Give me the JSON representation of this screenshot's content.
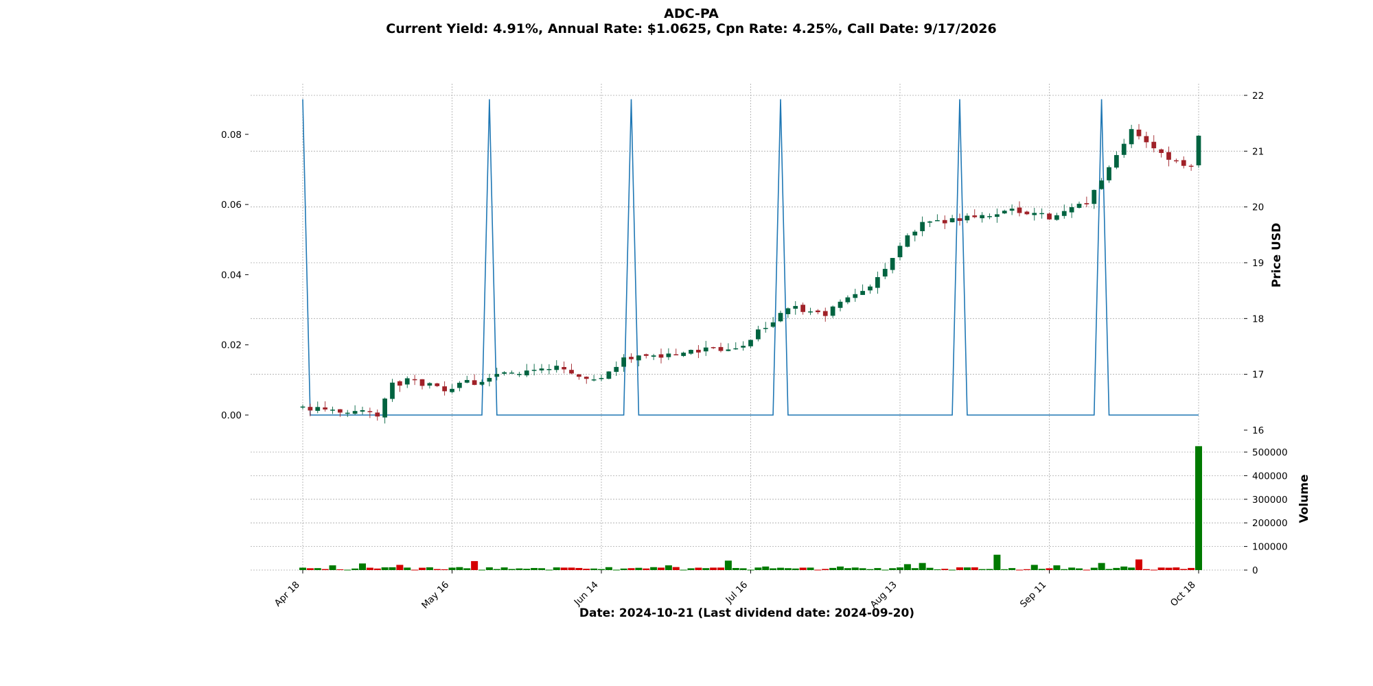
{
  "chart_data": {
    "type": "candlestick",
    "title": "ADC-PA",
    "subtitle": "Current Yield: 4.91%, Annual Rate: $1.0625, Cpn Rate: 4.25%, Call Date: 9/17/2026",
    "xlabel": "Date: 2024-10-21   (Last dividend date: 2024-09-20)",
    "ylabel_price": "Price USD",
    "ylabel_volume": "Volume",
    "x_tick_labels": [
      "Apr 18",
      "May 16",
      "Jun 14",
      "Jul 16",
      "Aug 13",
      "Sep 11",
      "Oct 18"
    ],
    "x_tick_index": [
      0,
      20,
      40,
      60,
      80,
      100,
      120
    ],
    "n_points": 121,
    "price_ylim": [
      16,
      22
    ],
    "price_ticks": [
      16,
      17,
      18,
      19,
      20,
      21,
      22
    ],
    "left_ylim": [
      0,
      0.09
    ],
    "left_ticks": [
      "0.00",
      "0.02",
      "0.04",
      "0.06",
      "0.08"
    ],
    "volume_ylim": [
      0,
      550000
    ],
    "volume_ticks": [
      "0",
      "100000",
      "200000",
      "300000",
      "400000",
      "500000"
    ],
    "grid": true,
    "colors": {
      "up": "#006340",
      "down": "#a02128",
      "vol_up": "#007a00",
      "vol_down": "#d40000",
      "line": "#1f77b4"
    },
    "price_anchors": [
      [
        0,
        16.4
      ],
      [
        10,
        16.3
      ],
      [
        12,
        16.8
      ],
      [
        14,
        16.9
      ],
      [
        19,
        16.75
      ],
      [
        24,
        16.9
      ],
      [
        33,
        17.15
      ],
      [
        40,
        16.9
      ],
      [
        43,
        17.3
      ],
      [
        49,
        17.35
      ],
      [
        55,
        17.45
      ],
      [
        59,
        17.55
      ],
      [
        65,
        18.2
      ],
      [
        70,
        18.1
      ],
      [
        76,
        18.6
      ],
      [
        80,
        19.3
      ],
      [
        83,
        19.7
      ],
      [
        90,
        19.85
      ],
      [
        95,
        19.95
      ],
      [
        100,
        19.8
      ],
      [
        105,
        20.1
      ],
      [
        111,
        21.4
      ],
      [
        116,
        20.8
      ],
      [
        119,
        20.7
      ],
      [
        120,
        21.3
      ]
    ],
    "yield_peaks_index": [
      0,
      25,
      44,
      64,
      88,
      107
    ],
    "yield_peak_value": 0.09,
    "volume_typical": 10000,
    "volume_peaks": [
      [
        4,
        20000
      ],
      [
        8,
        28000
      ],
      [
        13,
        22000
      ],
      [
        23,
        38000
      ],
      [
        42,
        25000
      ],
      [
        49,
        20000
      ],
      [
        57,
        40000
      ],
      [
        62,
        15000
      ],
      [
        72,
        15000
      ],
      [
        81,
        25000
      ],
      [
        83,
        30000
      ],
      [
        93,
        65000
      ],
      [
        98,
        22000
      ],
      [
        101,
        20000
      ],
      [
        105,
        18000
      ],
      [
        107,
        30000
      ],
      [
        110,
        15000
      ],
      [
        112,
        45000
      ],
      [
        120,
        525000
      ]
    ]
  }
}
